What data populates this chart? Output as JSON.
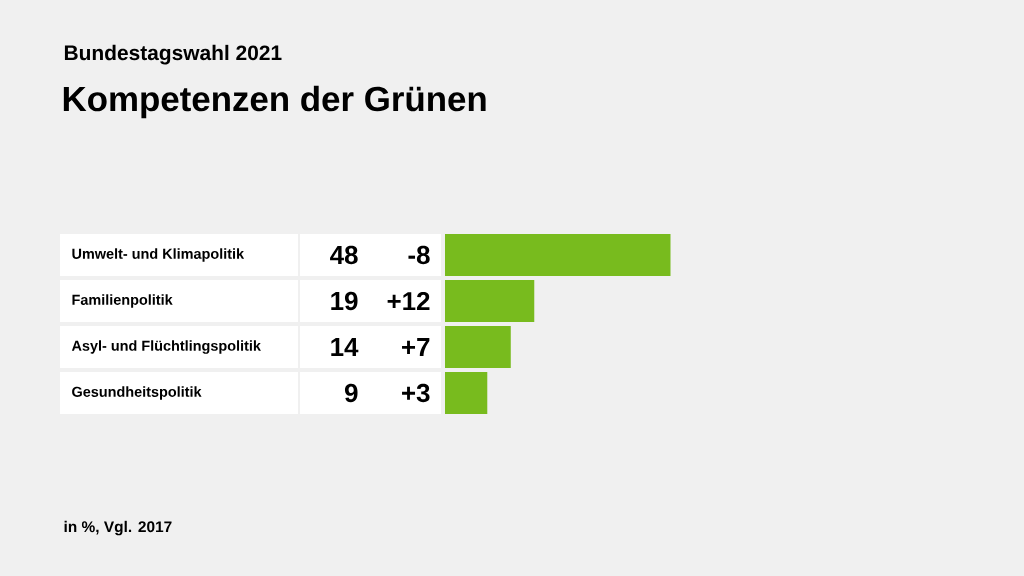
{
  "chart_data": {
    "type": "bar",
    "orientation": "horizontal",
    "title": "Kompetenzen der Grünen",
    "subtitle": "Bundestagswahl 2021",
    "categories": [
      "Umwelt- und Klimapolitik",
      "Familienpolitik",
      "Asyl- und Flüchtlingspolitik",
      "Gesundheitspolitik"
    ],
    "values": [
      48,
      19,
      14,
      9
    ],
    "color": "#78bb1e",
    "data_labels": true,
    "annotations": [
      "-8",
      "+12",
      "+7",
      "+3",
      "in %, Vgl. 2017"
    ]
  }
}
